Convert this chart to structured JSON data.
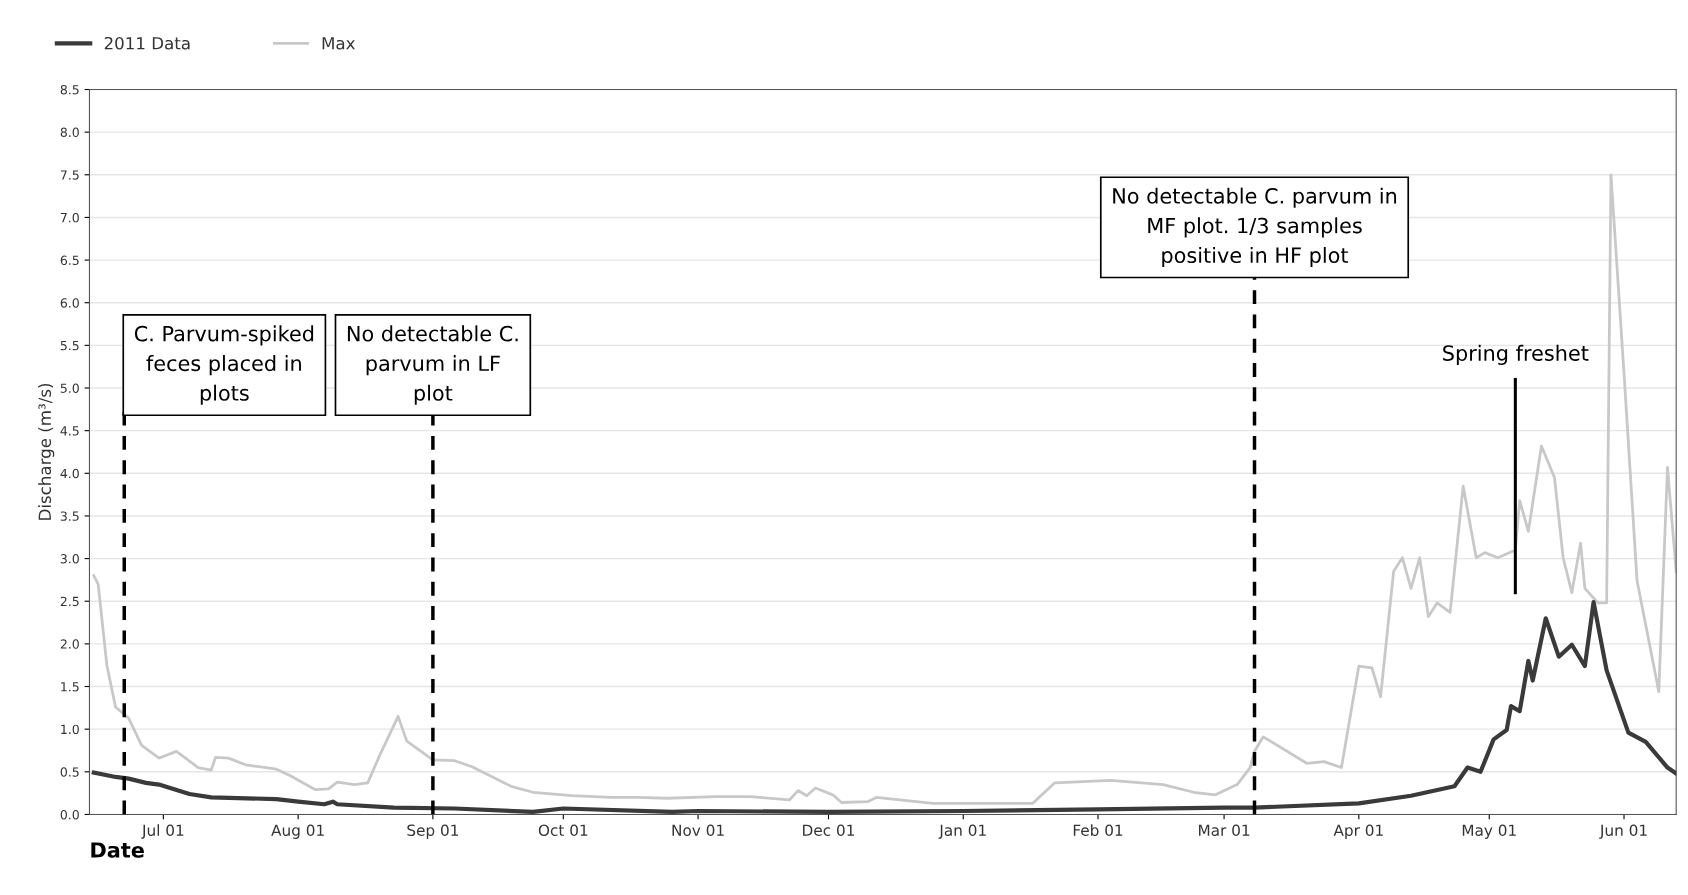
{
  "chart_data": {
    "type": "line",
    "xlabel": "Date",
    "ylabel": "Discharge (m³/s)",
    "xlim": [
      "2011-06-14",
      "2012-06-13"
    ],
    "xticks": [
      {
        "value": "2011-07-01",
        "label": "Jul 01"
      },
      {
        "value": "2011-08-01",
        "label": "Aug 01"
      },
      {
        "value": "2011-09-01",
        "label": "Sep 01"
      },
      {
        "value": "2011-10-01",
        "label": "Oct 01"
      },
      {
        "value": "2011-11-01",
        "label": "Nov 01"
      },
      {
        "value": "2011-12-01",
        "label": "Dec 01"
      },
      {
        "value": "2012-01-01",
        "label": "Jan 01"
      },
      {
        "value": "2012-02-01",
        "label": "Feb 01"
      },
      {
        "value": "2012-03-01",
        "label": "Mar 01"
      },
      {
        "value": "2012-04-01",
        "label": "Apr 01"
      },
      {
        "value": "2012-05-01",
        "label": "May 01"
      },
      {
        "value": "2012-06-01",
        "label": "Jun 01"
      }
    ],
    "ylim": [
      0,
      8.5
    ],
    "yticks": [
      {
        "value": 0,
        "label": "0.0"
      },
      0.5,
      {
        "value": 1,
        "label": "1.0"
      },
      1.5,
      {
        "value": 2,
        "label": "2.0"
      },
      2.5,
      {
        "value": 3,
        "label": "3.0"
      },
      3.5,
      {
        "value": 4,
        "label": "4.0"
      },
      4.5,
      {
        "value": 5,
        "label": "5.0"
      },
      5.5,
      {
        "value": 6,
        "label": "6.0"
      },
      6.5,
      {
        "value": 7,
        "label": "7.0"
      },
      7.5,
      {
        "value": 8,
        "label": "8.0"
      },
      8.5
    ],
    "grid": "y",
    "legend": "top left",
    "marker": "none",
    "line_style": "solid",
    "series": [
      {
        "name": "2011 Data",
        "color": "#3a3a3a",
        "x": [
          "2011-06-15",
          "2011-06-20",
          "2011-06-23",
          "2011-06-27",
          "2011-06-30",
          "2011-07-07",
          "2011-07-12",
          "2011-07-27",
          "2011-08-01",
          "2011-08-07",
          "2011-08-09",
          "2011-08-10",
          "2011-08-23",
          "2011-09-06",
          "2011-09-24",
          "2011-10-01",
          "2011-10-26",
          "2011-11-01",
          "2011-12-01",
          "2012-01-01",
          "2012-02-01",
          "2012-03-01",
          "2012-03-08",
          "2012-04-01",
          "2012-04-13",
          "2012-04-23",
          "2012-04-26",
          "2012-04-29",
          "2012-05-02",
          "2012-05-05",
          "2012-05-06",
          "2012-05-08",
          "2012-05-10",
          "2012-05-11",
          "2012-05-14",
          "2012-05-17",
          "2012-05-20",
          "2012-05-23",
          "2012-05-25",
          "2012-05-28",
          "2012-06-02",
          "2012-06-06",
          "2012-06-11",
          "2012-06-13"
        ],
        "values": [
          0.49,
          0.44,
          0.42,
          0.37,
          0.35,
          0.24,
          0.2,
          0.18,
          0.15,
          0.12,
          0.15,
          0.12,
          0.08,
          0.07,
          0.03,
          0.07,
          0.03,
          0.04,
          0.03,
          0.04,
          0.06,
          0.08,
          0.08,
          0.13,
          0.22,
          0.33,
          0.55,
          0.5,
          0.88,
          0.99,
          1.27,
          1.21,
          1.8,
          1.57,
          2.3,
          1.85,
          1.99,
          1.74,
          2.49,
          1.69,
          0.96,
          0.85,
          0.55,
          0.48
        ]
      },
      {
        "name": "Max",
        "color": "#c8c8c8",
        "x": [
          "2011-06-15",
          "2011-06-16",
          "2011-06-18",
          "2011-06-20",
          "2011-06-23",
          "2011-06-26",
          "2011-06-30",
          "2011-07-02",
          "2011-07-04",
          "2011-07-09",
          "2011-07-12",
          "2011-07-13",
          "2011-07-16",
          "2011-07-20",
          "2011-07-23",
          "2011-07-27",
          "2011-07-30",
          "2011-08-05",
          "2011-08-08",
          "2011-08-10",
          "2011-08-14",
          "2011-08-17",
          "2011-08-20",
          "2011-08-24",
          "2011-08-26",
          "2011-09-01",
          "2011-09-06",
          "2011-09-10",
          "2011-09-19",
          "2011-09-24",
          "2011-10-03",
          "2011-10-12",
          "2011-10-18",
          "2011-10-25",
          "2011-11-05",
          "2011-11-13",
          "2011-11-22",
          "2011-11-24",
          "2011-11-26",
          "2011-11-28",
          "2011-12-02",
          "2011-12-04",
          "2011-12-10",
          "2011-12-12",
          "2011-12-25",
          "2012-01-08",
          "2012-01-17",
          "2012-01-22",
          "2012-02-04",
          "2012-02-16",
          "2012-02-23",
          "2012-02-28",
          "2012-03-04",
          "2012-03-07",
          "2012-03-08",
          "2012-03-10",
          "2012-03-20",
          "2012-03-24",
          "2012-03-28",
          "2012-04-01",
          "2012-04-04",
          "2012-04-06",
          "2012-04-09",
          "2012-04-11",
          "2012-04-13",
          "2012-04-15",
          "2012-04-17",
          "2012-04-19",
          "2012-04-22",
          "2012-04-25",
          "2012-04-28",
          "2012-04-30",
          "2012-05-03",
          "2012-05-07",
          "2012-05-08",
          "2012-05-10",
          "2012-05-13",
          "2012-05-16",
          "2012-05-18",
          "2012-05-20",
          "2012-05-22",
          "2012-05-23",
          "2012-05-26",
          "2012-05-28",
          "2012-05-29",
          "2012-06-01",
          "2012-06-04",
          "2012-06-09",
          "2012-06-11",
          "2012-06-13"
        ],
        "values": [
          2.8,
          2.7,
          1.75,
          1.26,
          1.13,
          0.81,
          0.66,
          0.7,
          0.74,
          0.55,
          0.52,
          0.67,
          0.66,
          0.58,
          0.56,
          0.53,
          0.46,
          0.29,
          0.3,
          0.38,
          0.35,
          0.37,
          0.72,
          1.15,
          0.86,
          0.64,
          0.63,
          0.56,
          0.33,
          0.26,
          0.22,
          0.2,
          0.2,
          0.19,
          0.21,
          0.21,
          0.17,
          0.28,
          0.22,
          0.31,
          0.23,
          0.14,
          0.15,
          0.2,
          0.13,
          0.13,
          0.13,
          0.37,
          0.4,
          0.35,
          0.26,
          0.23,
          0.35,
          0.55,
          0.74,
          0.91,
          0.6,
          0.62,
          0.55,
          1.74,
          1.72,
          1.38,
          2.85,
          3.01,
          2.65,
          3.01,
          2.32,
          2.48,
          2.37,
          3.85,
          3.01,
          3.07,
          3.01,
          3.1,
          3.68,
          3.32,
          4.32,
          3.95,
          3.01,
          2.6,
          3.18,
          2.65,
          2.48,
          2.48,
          7.5,
          5.17,
          2.74,
          1.44,
          4.07,
          2.85
        ]
      }
    ],
    "ref_lines": [
      {
        "axis": "x",
        "value": "2011-06-22",
        "label": "C. Parvum-spiked\nfeces placed in\nplots",
        "color": "#000000",
        "line_style": "dashed"
      },
      {
        "axis": "x",
        "value": "2011-09-01",
        "label": "No detectable C.\nparvum in LF\nplot",
        "color": "#000000",
        "line_style": "dashed"
      },
      {
        "axis": "x",
        "value": "2012-03-08",
        "label": "No detectable C. parvum in\nMF plot. 1/3 samples\npositive in HF plot",
        "color": "#000000",
        "line_style": "dashed"
      },
      {
        "axis": "x",
        "value": "2012-05-07",
        "label": "Spring freshet",
        "color": "#000000",
        "line_style": "solid"
      }
    ]
  }
}
